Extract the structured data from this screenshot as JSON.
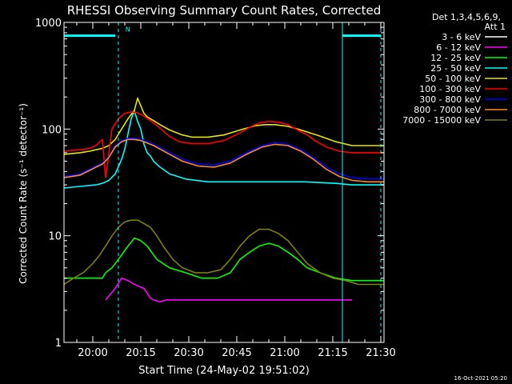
{
  "chart_data": {
    "type": "line",
    "title": "RHESSI Observing Summary Count Rates, Corrected",
    "xlabel": "Start Time (24-May-02 19:51:02)",
    "ylabel": "Corrected Count Rate (s⁻¹ detector⁻¹)",
    "yscale": "log",
    "ylim": [
      1,
      1000
    ],
    "xlim_minutes": [
      0,
      100
    ],
    "x_ticks": [
      {
        "m": 9,
        "label": "20:00"
      },
      {
        "m": 24,
        "label": "20:15"
      },
      {
        "m": 39,
        "label": "20:30"
      },
      {
        "m": 54,
        "label": "20:45"
      },
      {
        "m": 69,
        "label": "21:00"
      },
      {
        "m": 84,
        "label": "21:15"
      },
      {
        "m": 99,
        "label": "21:30"
      }
    ],
    "y_ticks": [
      {
        "v": 1,
        "label": "1"
      },
      {
        "v": 10,
        "label": "10"
      },
      {
        "v": 100,
        "label": "100"
      },
      {
        "v": 1000,
        "label": "1000"
      }
    ],
    "legend_header": [
      "Det 1,3,4,5,6,9,",
      "Att 1"
    ],
    "timestamp": "16-Oct-2021 05:20",
    "night_marker": "N",
    "series": [
      {
        "name": "3 - 6 keV",
        "color": "#ffffff",
        "x": [],
        "y": []
      },
      {
        "name": "6 - 12 keV",
        "color": "#ff00ff",
        "x": [
          0,
          12,
          13,
          16,
          18,
          20,
          22,
          25,
          27,
          28,
          30,
          32,
          35,
          40,
          45,
          55,
          60,
          65,
          70,
          75,
          78,
          80,
          85,
          90,
          91
        ],
        "y": [
          null,
          null,
          2.5,
          3.2,
          4.0,
          3.8,
          3.5,
          3.2,
          2.6,
          2.5,
          2.4,
          2.5,
          2.5,
          2.5,
          2.5,
          2.5,
          2.5,
          2.5,
          2.5,
          2.5,
          2.5,
          2.5,
          2.5,
          2.5,
          null
        ]
      },
      {
        "name": "12 - 25 keV",
        "color": "#00ff00",
        "x": [
          0,
          3,
          5,
          8,
          11,
          12,
          13,
          15,
          17,
          20,
          22,
          24,
          26,
          29,
          33,
          38,
          43,
          48,
          52,
          55,
          58,
          61,
          64,
          67,
          70,
          73,
          76,
          80,
          85,
          90,
          95,
          100
        ],
        "y": [
          4.0,
          4.0,
          4.0,
          4.0,
          4.0,
          4.0,
          4.5,
          5.0,
          6.0,
          8.0,
          9.5,
          9.0,
          8.0,
          6.0,
          5.0,
          4.5,
          4.0,
          4.0,
          4.5,
          6.0,
          7.0,
          8.0,
          8.5,
          8.0,
          7.0,
          6.0,
          5.0,
          4.5,
          4.0,
          3.8,
          3.8,
          3.8
        ]
      },
      {
        "name": "25 - 50 keV",
        "color": "#00ffff",
        "x": [
          0,
          5,
          10,
          12,
          14,
          16,
          18,
          19,
          20,
          21,
          22,
          23,
          24,
          25,
          26,
          27,
          28,
          30,
          33,
          38,
          45,
          55,
          65,
          75,
          85,
          90,
          95,
          100
        ],
        "y": [
          28,
          29,
          30,
          31,
          33,
          38,
          52,
          65,
          90,
          125,
          148,
          118,
          100,
          72,
          60,
          56,
          50,
          44,
          38,
          34,
          32,
          32,
          32,
          32,
          31,
          30,
          30,
          30
        ]
      },
      {
        "name": "50 - 100 keV",
        "color": "#e6e600",
        "x": [
          0,
          5,
          8,
          10,
          12,
          14,
          16,
          18,
          20,
          22,
          23,
          24,
          25,
          26,
          28,
          30,
          33,
          37,
          40,
          45,
          50,
          55,
          60,
          63,
          66,
          70,
          73,
          76,
          80,
          85,
          90,
          95,
          100
        ],
        "y": [
          58,
          60,
          62,
          64,
          66,
          70,
          80,
          100,
          125,
          150,
          195,
          165,
          140,
          130,
          120,
          110,
          98,
          88,
          84,
          84,
          88,
          98,
          108,
          110,
          110,
          106,
          100,
          94,
          86,
          76,
          70,
          70,
          70
        ]
      },
      {
        "name": "100 - 300 keV",
        "color": "#ff0000",
        "x": [
          0,
          5,
          8,
          10,
          11,
          12,
          13,
          15,
          17,
          19,
          21,
          23,
          25,
          27,
          29,
          31,
          33,
          36,
          40,
          45,
          50,
          55,
          58,
          61,
          64,
          67,
          70,
          73,
          76,
          79,
          82,
          86,
          90,
          95,
          100
        ],
        "y": [
          62,
          64,
          66,
          70,
          75,
          80,
          35,
          100,
          125,
          140,
          145,
          142,
          132,
          120,
          108,
          96,
          85,
          76,
          73,
          73,
          78,
          92,
          104,
          114,
          118,
          116,
          110,
          98,
          88,
          76,
          68,
          62,
          60,
          60,
          60
        ]
      },
      {
        "name": "300 - 800 keV",
        "color": "#0000ff",
        "x": [
          0,
          5,
          8,
          10,
          12,
          14,
          16,
          18,
          20,
          22,
          24,
          26,
          28,
          30,
          33,
          37,
          42,
          47,
          52,
          57,
          62,
          66,
          70,
          74,
          78,
          82,
          86,
          90,
          95,
          100
        ],
        "y": [
          36,
          38,
          42,
          45,
          48,
          55,
          70,
          78,
          82,
          82,
          80,
          76,
          72,
          67,
          60,
          52,
          47,
          46,
          50,
          60,
          70,
          75,
          72,
          64,
          54,
          44,
          38,
          35,
          34,
          34
        ]
      },
      {
        "name": "800 - 7000 keV",
        "color": "#ff8c1a",
        "x": [
          0,
          5,
          8,
          10,
          12,
          14,
          16,
          18,
          20,
          22,
          24,
          26,
          28,
          30,
          33,
          37,
          42,
          47,
          52,
          57,
          62,
          66,
          70,
          74,
          78,
          82,
          86,
          90,
          95,
          100
        ],
        "y": [
          35,
          37,
          41,
          44,
          47,
          54,
          68,
          76,
          80,
          80,
          78,
          74,
          70,
          65,
          58,
          50,
          45,
          44,
          48,
          58,
          68,
          72,
          70,
          62,
          52,
          42,
          36,
          33,
          32,
          32
        ]
      },
      {
        "name": "7000 - 15000 keV",
        "color": "#808000",
        "x": [
          0,
          3,
          6,
          9,
          11,
          13,
          15,
          17,
          19,
          21,
          23,
          25,
          27,
          29,
          31,
          34,
          37,
          41,
          45,
          49,
          52,
          55,
          58,
          61,
          64,
          67,
          70,
          73,
          76,
          80,
          84,
          88,
          92,
          96,
          100
        ],
        "y": [
          3.5,
          4.0,
          4.5,
          5.5,
          6.5,
          8.0,
          10.0,
          12.0,
          13.5,
          14.0,
          14.0,
          13.0,
          12.0,
          10.0,
          8.0,
          6.0,
          5.0,
          4.5,
          4.5,
          4.8,
          6.0,
          8.0,
          10.0,
          11.5,
          11.5,
          10.5,
          9.0,
          7.0,
          5.5,
          4.5,
          4.0,
          3.8,
          3.5,
          3.5,
          3.5
        ]
      }
    ]
  }
}
